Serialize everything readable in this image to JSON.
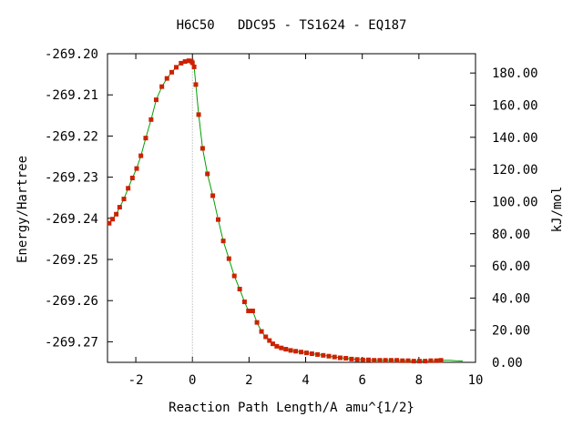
{
  "chart_data": {
    "type": "line",
    "title": "H6C50   DDC95 - TS1624 - EQ187",
    "xlabel": "Reaction Path Length/A amu^{1/2}",
    "ylabel": "Energy/Hartree",
    "y2label": "kJ/mol",
    "xlim": [
      -3,
      10
    ],
    "ylim": [
      -269.275,
      -269.2
    ],
    "y2lim": [
      0,
      192
    ],
    "xticks": [
      "-2",
      "0",
      "2",
      "4",
      "6",
      "8",
      "10"
    ],
    "yticks": [
      "-269.20",
      "-269.21",
      "-269.22",
      "-269.23",
      "-269.24",
      "-269.25",
      "-269.26",
      "-269.27"
    ],
    "y2ticks": [
      "0.00",
      "20.00",
      "40.00",
      "60.00",
      "80.00",
      "100.00",
      "120.00",
      "140.00",
      "160.00",
      "180.00"
    ],
    "ts_marker_x": 0,
    "colors": {
      "line": "#00a000",
      "points": "#cc2200",
      "ts_marker": "#999999",
      "axes": "#000000"
    },
    "series": [
      {
        "x": [
          -2.94,
          -2.82,
          -2.69,
          -2.57,
          -2.42,
          -2.27,
          -2.12,
          -1.97,
          -1.82,
          -1.65,
          -1.46,
          -1.28,
          -1.08,
          -0.9,
          -0.73,
          -0.57,
          -0.4,
          -0.26,
          -0.13,
          -0.04,
          0.0,
          0.06,
          0.12,
          0.22,
          0.36,
          0.53,
          0.72,
          0.91,
          1.09,
          1.29,
          1.48,
          1.67,
          1.84,
          1.98,
          2.13,
          2.28,
          2.44,
          2.59,
          2.72,
          2.84,
          2.98,
          3.14,
          3.3,
          3.47,
          3.65,
          3.84,
          4.03,
          4.22,
          4.42,
          4.62,
          4.82,
          5.02,
          5.22,
          5.42,
          5.62,
          5.82,
          6.02,
          6.22,
          6.42,
          6.62,
          6.82,
          7.02,
          7.22,
          7.42,
          7.62,
          7.82,
          8.02,
          8.22,
          8.42,
          8.62,
          8.78,
          8.9,
          9.1,
          9.3,
          9.55
        ],
        "y": [
          -269.2412,
          -269.2402,
          -269.239,
          -269.2373,
          -269.2353,
          -269.2327,
          -269.2302,
          -269.2279,
          -269.2248,
          -269.2205,
          -269.216,
          -269.2112,
          -269.208,
          -269.206,
          -269.2045,
          -269.2033,
          -269.2023,
          -269.2019,
          -269.2017,
          -269.2018,
          -269.2022,
          -269.2032,
          -269.2075,
          -269.2148,
          -269.223,
          -269.2292,
          -269.2345,
          -269.2403,
          -269.2455,
          -269.2498,
          -269.254,
          -269.2572,
          -269.2603,
          -269.2625,
          -269.2625,
          -269.2653,
          -269.2675,
          -269.2688,
          -269.2697,
          -269.2705,
          -269.2711,
          -269.2715,
          -269.2718,
          -269.2721,
          -269.2723,
          -269.2725,
          -269.2727,
          -269.2729,
          -269.2731,
          -269.2733,
          -269.2735,
          -269.2737,
          -269.2739,
          -269.274,
          -269.2742,
          -269.2743,
          -269.2744,
          -269.2744,
          -269.2745,
          -269.2745,
          -269.2745,
          -269.2745,
          -269.2745,
          -269.2746,
          -269.2746,
          -269.2747,
          -269.2747,
          -269.2747,
          -269.2746,
          -269.2746,
          -269.2745,
          -269.2745,
          -269.2745,
          -269.2746,
          -269.2747
        ]
      }
    ]
  }
}
